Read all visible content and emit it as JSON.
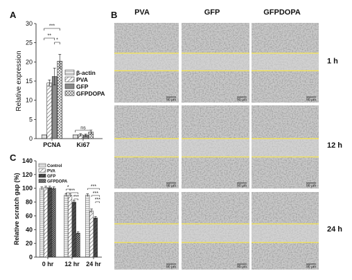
{
  "panels": {
    "a": "A",
    "b": "B",
    "c": "C"
  },
  "chart_data": [
    {
      "type": "bar",
      "ylabel": "Relative expression",
      "categories": [
        "PCNA",
        "Ki67"
      ],
      "ylim": [
        0,
        30
      ],
      "yticks": [
        0,
        5,
        10,
        15,
        20,
        25,
        30
      ],
      "series": [
        {
          "name": "β-actin",
          "values": [
            1,
            1
          ],
          "errors": [
            0,
            0
          ],
          "pattern": "hstripe"
        },
        {
          "name": "PVA",
          "values": [
            14.5,
            1.0
          ],
          "errors": [
            0.8,
            0.3
          ],
          "pattern": "diag"
        },
        {
          "name": "GFP",
          "values": [
            16.2,
            0.9
          ],
          "errors": [
            2.2,
            0.3
          ],
          "pattern": "solid"
        },
        {
          "name": "GFPDOPA",
          "values": [
            20.2,
            1.7
          ],
          "errors": [
            1.8,
            0.5
          ],
          "pattern": "cross"
        }
      ],
      "significance": [
        {
          "label": "***",
          "from_series": 0,
          "to_series": 3,
          "category": 0
        },
        {
          "label": "**",
          "from_series": 0,
          "to_series": 2,
          "category": 0
        },
        {
          "label": "*",
          "from_series": 2,
          "to_series": 3,
          "category": 0
        },
        {
          "label": "ns",
          "from_series": 0,
          "to_series": 3,
          "category": 1
        }
      ]
    },
    {
      "type": "bar",
      "ylabel": "Relative scratch gap (%)",
      "categories": [
        "0 hr",
        "12 hr",
        "24 hr"
      ],
      "ylim": [
        0,
        140
      ],
      "yticks": [
        0,
        20,
        40,
        60,
        80,
        100,
        120,
        140
      ],
      "series": [
        {
          "name": "Control",
          "values": [
            100,
            90,
            90
          ],
          "errors": [
            2,
            2,
            2
          ],
          "pattern": "hstripe"
        },
        {
          "name": "PVA",
          "values": [
            101,
            90,
            67
          ],
          "errors": [
            2,
            2,
            3
          ],
          "pattern": "diag"
        },
        {
          "name": "GFP",
          "values": [
            101,
            80,
            57
          ],
          "errors": [
            2,
            2,
            2
          ],
          "pattern": "dark"
        },
        {
          "name": "GFPDOPA",
          "values": [
            100,
            35,
            0
          ],
          "errors": [
            2,
            2,
            0
          ],
          "pattern": "checker"
        }
      ],
      "significance": [
        {
          "label": "*",
          "category": 1
        },
        {
          "label": "***",
          "category": 1
        },
        {
          "label": "***",
          "category": 1
        },
        {
          "label": "***",
          "category": 2
        },
        {
          "label": "***",
          "category": 2
        },
        {
          "label": "***",
          "category": 2
        }
      ]
    }
  ],
  "micrographs": {
    "columns": [
      "PVA",
      "GFP",
      "GFPDOPA"
    ],
    "rows": [
      "1 h",
      "12 h",
      "24 h"
    ],
    "scale_bar": "90 μm",
    "line_color": "#f2e25a"
  }
}
